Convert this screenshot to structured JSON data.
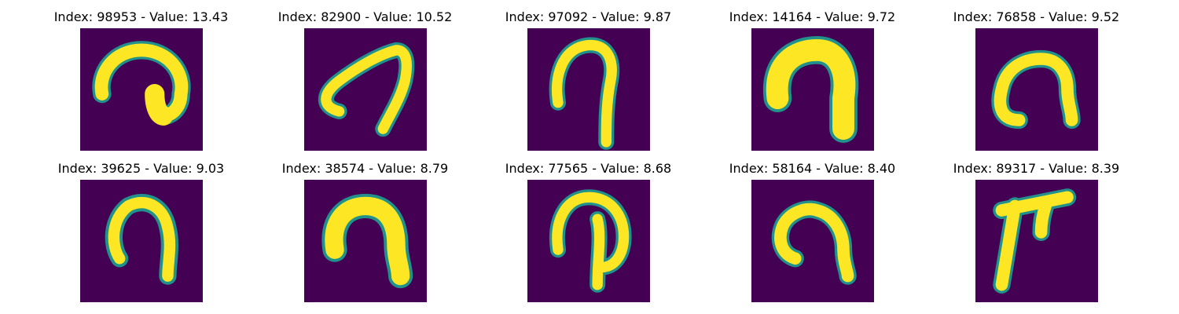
{
  "panels": [
    {
      "index": "98953",
      "value": "13.43",
      "label": "Index: 98953 - Value: 13.43",
      "shape": "hook-a"
    },
    {
      "index": "82900",
      "value": "10.52",
      "label": "Index: 82900 - Value: 10.52",
      "shape": "hook-b"
    },
    {
      "index": "97092",
      "value": "9.87",
      "label": "Index: 97092 - Value: 9.87",
      "shape": "hook-c"
    },
    {
      "index": "14164",
      "value": "9.72",
      "label": "Index: 14164 - Value: 9.72",
      "shape": "arch-thick"
    },
    {
      "index": "76858",
      "value": "9.52",
      "label": "Index: 76858 - Value: 9.52",
      "shape": "arch-a"
    },
    {
      "index": "39625",
      "value": "9.03",
      "label": "Index: 39625 - Value: 9.03",
      "shape": "arch-b"
    },
    {
      "index": "38574",
      "value": "8.79",
      "label": "Index: 38574 - Value: 8.79",
      "shape": "arch-c"
    },
    {
      "index": "77565",
      "value": "8.68",
      "label": "Index: 77565 - Value: 8.68",
      "shape": "loop-tail"
    },
    {
      "index": "58164",
      "value": "8.40",
      "label": "Index: 58164 - Value: 8.40",
      "shape": "arch-d"
    },
    {
      "index": "89317",
      "value": "8.39",
      "label": "Index: 89317 - Value: 8.39",
      "shape": "corner"
    }
  ],
  "colors": {
    "background": "#440154",
    "mid": "#21918c",
    "stroke": "#fde725"
  }
}
